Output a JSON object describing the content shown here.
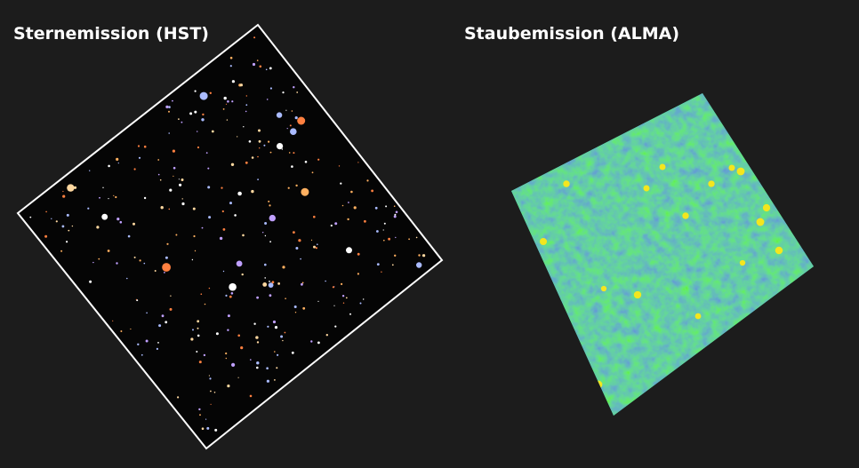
{
  "panels": [
    {
      "title": "Sternemission (HST)"
    },
    {
      "title": "Staubemission (ALMA)"
    }
  ]
}
